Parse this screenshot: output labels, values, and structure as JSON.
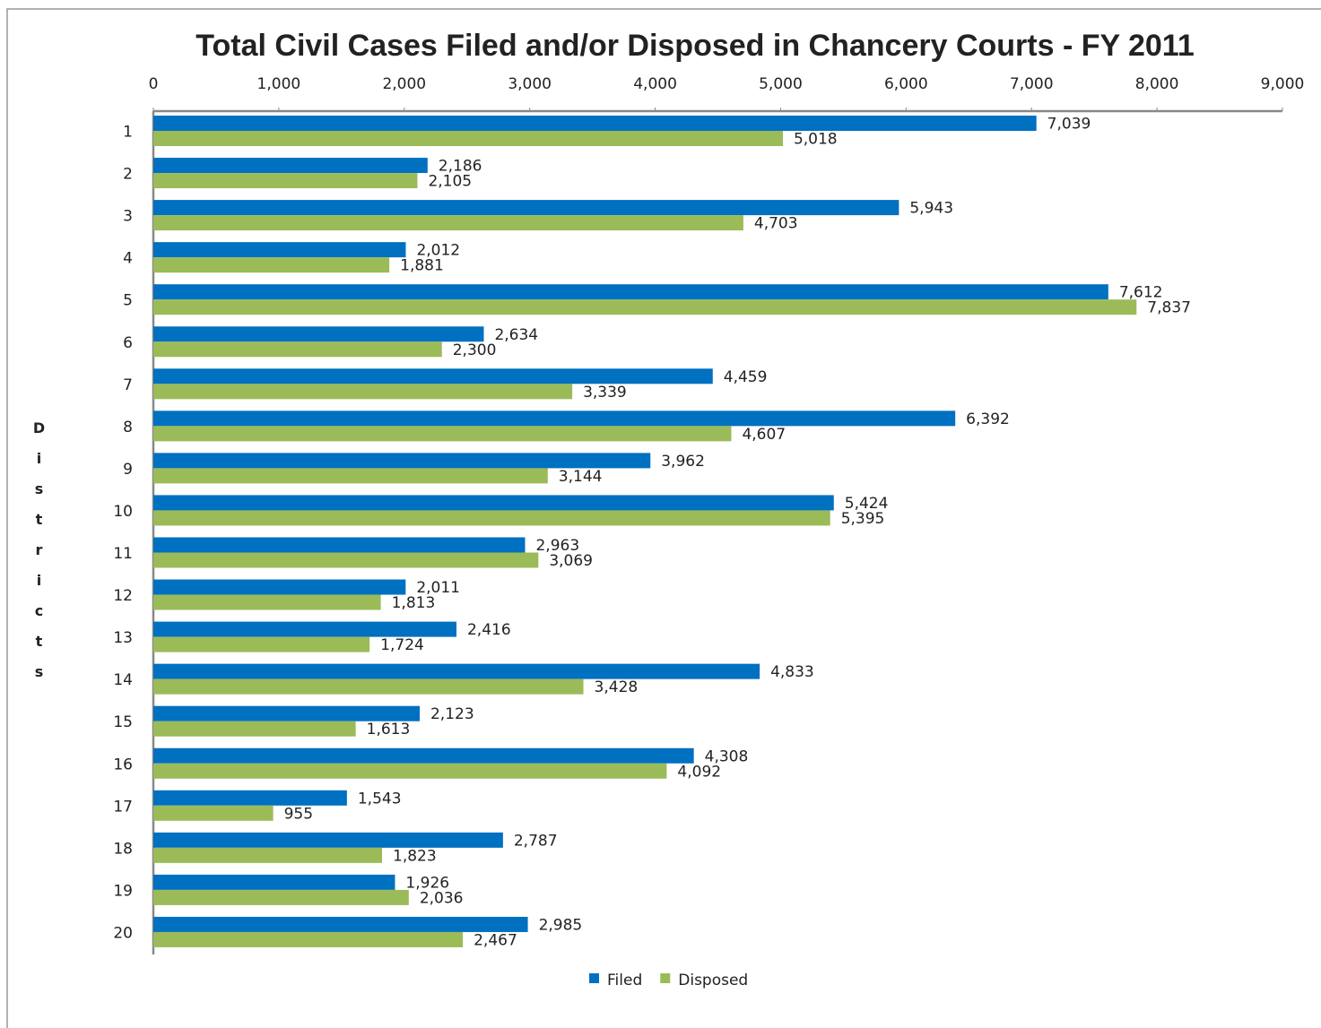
{
  "chart_data": {
    "type": "hbar",
    "title": "Total Civil Cases Filed and/or Disposed in Chancery Courts - FY 2011",
    "y_label": "Districts",
    "categories": [
      "1",
      "2",
      "3",
      "4",
      "5",
      "6",
      "7",
      "8",
      "9",
      "10",
      "11",
      "12",
      "13",
      "14",
      "15",
      "16",
      "17",
      "18",
      "19",
      "20"
    ],
    "series": [
      {
        "name": "Filed",
        "color": "#0070c0",
        "values": [
          7039,
          2186,
          5943,
          2012,
          7612,
          2634,
          4459,
          6392,
          3962,
          5424,
          2963,
          2011,
          2416,
          4833,
          2123,
          4308,
          1543,
          2787,
          1926,
          2985
        ],
        "value_labels": [
          "7,039",
          "2,186",
          "5,943",
          "2,012",
          "7,612",
          "2,634",
          "4,459",
          "6,392",
          "3,962",
          "5,424",
          "2,963",
          "2,011",
          "2,416",
          "4,833",
          "2,123",
          "4,308",
          "1,543",
          "2,787",
          "1,926",
          "2,985"
        ]
      },
      {
        "name": "Disposed",
        "color": "#9bbb59",
        "values": [
          5018,
          2105,
          4703,
          1881,
          7837,
          2300,
          3339,
          4607,
          3144,
          5395,
          3069,
          1813,
          1724,
          3428,
          1613,
          4092,
          955,
          1823,
          2036,
          2467
        ],
        "value_labels": [
          "5,018",
          "2,105",
          "4,703",
          "1,881",
          "7,837",
          "2,300",
          "3,339",
          "4,607",
          "3,144",
          "5,395",
          "3,069",
          "1,813",
          "1,724",
          "3,428",
          "1,613",
          "4,092",
          "955",
          "1,823",
          "2,036",
          "2,467"
        ]
      }
    ],
    "xlim": [
      0,
      9000
    ],
    "xticks": [
      0,
      {
        "value": 1000,
        "label": "1,000"
      },
      {
        "value": 2000,
        "label": "2,000"
      },
      {
        "value": 3000,
        "label": "3,000"
      },
      {
        "value": 4000,
        "label": "4,000"
      },
      {
        "value": 5000,
        "label": "5,000"
      },
      {
        "value": 6000,
        "label": "6,000"
      },
      {
        "value": 7000,
        "label": "7,000"
      },
      {
        "value": 8000,
        "label": "8,000"
      },
      {
        "value": 9000,
        "label": "9,000"
      }
    ],
    "grid": false,
    "legend": "bottom"
  }
}
